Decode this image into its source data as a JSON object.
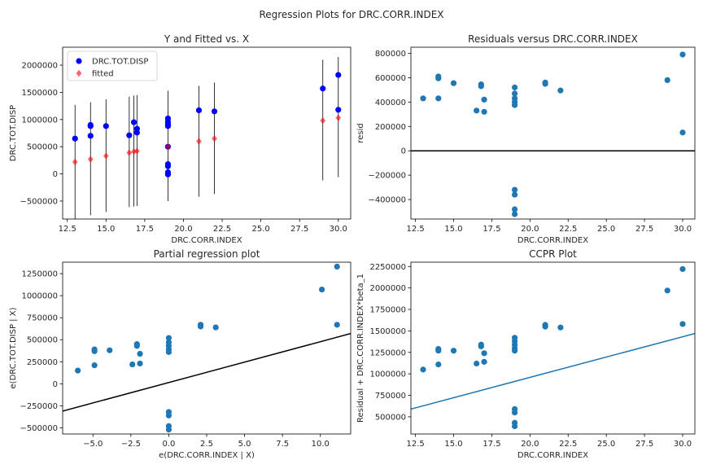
{
  "figure": {
    "suptitle": "Regression Plots for DRC.CORR.INDEX"
  },
  "chart_data": [
    {
      "type": "scatter",
      "title": "Y and Fitted vs. X",
      "xlabel": "DRC.CORR.INDEX",
      "ylabel": "DRC.TOT.DISP",
      "xlim": [
        12.2,
        30.8
      ],
      "ylim": [
        -830000,
        2330000
      ],
      "xticks": [
        12.5,
        15.0,
        17.5,
        20.0,
        22.5,
        25.0,
        27.5,
        30.0
      ],
      "xtick_labels": [
        "12.5",
        "15.0",
        "17.5",
        "20.0",
        "22.5",
        "25.0",
        "27.5",
        "30.0"
      ],
      "yticks": [
        -500000,
        0,
        500000,
        1000000,
        1500000,
        2000000
      ],
      "ytick_labels": [
        "−500000",
        "0",
        "500000",
        "1000000",
        "1500000",
        "2000000"
      ],
      "legend": {
        "placement": "upper-left",
        "entries": [
          "DRC.TOT.DISP",
          "fitted"
        ]
      },
      "series": [
        {
          "name": "DRC.TOT.DISP",
          "color": "#0000ff",
          "marker": "circle",
          "points": [
            [
              13,
              650000
            ],
            [
              14,
              880000
            ],
            [
              14,
              900000
            ],
            [
              14,
              700000
            ],
            [
              15,
              880000
            ],
            [
              16.5,
              710000
            ],
            [
              16.8,
              950000
            ],
            [
              17,
              830000
            ],
            [
              17,
              760000
            ],
            [
              19,
              1020000
            ],
            [
              19,
              960000
            ],
            [
              19,
              920000
            ],
            [
              19,
              880000
            ],
            [
              19,
              500000
            ],
            [
              19,
              180000
            ],
            [
              19,
              140000
            ],
            [
              19,
              30000
            ],
            [
              19,
              -10000
            ],
            [
              21,
              1170000
            ],
            [
              22,
              1150000
            ],
            [
              29,
              1570000
            ],
            [
              30,
              1820000
            ],
            [
              30,
              1180000
            ]
          ]
        },
        {
          "name": "fitted",
          "color": "#ff0000",
          "marker": "diamond",
          "points": [
            [
              13,
              220000
            ],
            [
              14,
              270000
            ],
            [
              15,
              330000
            ],
            [
              16.5,
              390000
            ],
            [
              16.8,
              410000
            ],
            [
              17,
              420000
            ],
            [
              19,
              500000
            ],
            [
              21,
              600000
            ],
            [
              22,
              650000
            ],
            [
              29,
              980000
            ],
            [
              30,
              1030000
            ]
          ]
        }
      ],
      "intervals": [
        [
          13,
          -830000,
          1270000
        ],
        [
          14,
          -760000,
          1320000
        ],
        [
          15,
          -700000,
          1370000
        ],
        [
          16.5,
          -610000,
          1420000
        ],
        [
          16.8,
          -600000,
          1440000
        ],
        [
          17,
          -590000,
          1450000
        ],
        [
          19,
          -500000,
          1530000
        ],
        [
          21,
          -420000,
          1620000
        ],
        [
          22,
          -370000,
          1680000
        ],
        [
          29,
          -120000,
          2100000
        ],
        [
          30,
          -60000,
          2150000
        ]
      ]
    },
    {
      "type": "scatter",
      "title": "Residuals versus DRC.CORR.INDEX",
      "xlabel": "DRC.CORR.INDEX",
      "ylabel": "resid",
      "xlim": [
        12.2,
        30.8
      ],
      "ylim": [
        -560000,
        850000
      ],
      "xticks": [
        12.5,
        15.0,
        17.5,
        20.0,
        22.5,
        25.0,
        27.5,
        30.0
      ],
      "xtick_labels": [
        "12.5",
        "15.0",
        "17.5",
        "20.0",
        "22.5",
        "25.0",
        "27.5",
        "30.0"
      ],
      "yticks": [
        -400000,
        -200000,
        0,
        200000,
        400000,
        600000,
        800000
      ],
      "ytick_labels": [
        "−400000",
        "−200000",
        "0",
        "200000",
        "400000",
        "600000",
        "800000"
      ],
      "hline": 0,
      "series": [
        {
          "color": "#1f77b4",
          "marker": "circle",
          "points": [
            [
              13,
              430000
            ],
            [
              14,
              610000
            ],
            [
              14,
              595000
            ],
            [
              14,
              430000
            ],
            [
              15,
              555000
            ],
            [
              16.5,
              330000
            ],
            [
              16.8,
              545000
            ],
            [
              16.8,
              530000
            ],
            [
              17,
              420000
            ],
            [
              17,
              320000
            ],
            [
              19,
              520000
            ],
            [
              19,
              470000
            ],
            [
              19,
              430000
            ],
            [
              19,
              400000
            ],
            [
              19,
              375000
            ],
            [
              19,
              -320000
            ],
            [
              19,
              -360000
            ],
            [
              19,
              -480000
            ],
            [
              19,
              -520000
            ],
            [
              21,
              560000
            ],
            [
              21,
              550000
            ],
            [
              22,
              495000
            ],
            [
              29,
              580000
            ],
            [
              30,
              790000
            ],
            [
              30,
              150000
            ]
          ]
        }
      ]
    },
    {
      "type": "scatter",
      "title": "Partial regression plot",
      "xlabel": "e(DRC.CORR.INDEX | X)",
      "ylabel": "e(DRC.TOT.DISP | X)",
      "xlim": [
        -7,
        12
      ],
      "ylim": [
        -570000,
        1380000
      ],
      "xticks": [
        -5.0,
        -2.5,
        0.0,
        2.5,
        5.0,
        7.5,
        10.0
      ],
      "xtick_labels": [
        "−5.0",
        "−2.5",
        "0.0",
        "2.5",
        "5.0",
        "7.5",
        "10.0"
      ],
      "yticks": [
        -500000,
        -250000,
        0,
        250000,
        500000,
        750000,
        1000000,
        1250000
      ],
      "ytick_labels": [
        "−500000",
        "−250000",
        "0",
        "250000",
        "500000",
        "750000",
        "1000000",
        "1250000"
      ],
      "fit_line": [
        [
          -7,
          -310000
        ],
        [
          12,
          570000
        ]
      ],
      "series": [
        {
          "color": "#1f77b4",
          "marker": "circle",
          "points": [
            [
              -6,
              150000
            ],
            [
              -4.9,
              390000
            ],
            [
              -4.9,
              370000
            ],
            [
              -4.9,
              210000
            ],
            [
              -3.9,
              380000
            ],
            [
              -2.4,
              220000
            ],
            [
              -2.1,
              450000
            ],
            [
              -2.1,
              430000
            ],
            [
              -1.9,
              340000
            ],
            [
              -1.9,
              230000
            ],
            [
              0,
              520000
            ],
            [
              0,
              470000
            ],
            [
              0,
              430000
            ],
            [
              0,
              390000
            ],
            [
              0,
              360000
            ],
            [
              0,
              -320000
            ],
            [
              0,
              -360000
            ],
            [
              0,
              -480000
            ],
            [
              0,
              -520000
            ],
            [
              2.1,
              670000
            ],
            [
              2.1,
              650000
            ],
            [
              3.1,
              640000
            ],
            [
              10.1,
              1070000
            ],
            [
              11.1,
              1330000
            ],
            [
              11.1,
              670000
            ]
          ]
        }
      ]
    },
    {
      "type": "scatter",
      "title": "CCPR Plot",
      "xlabel": "DRC.CORR.INDEX",
      "ylabel": "Residual + DRC.CORR.INDEX*beta_1",
      "xlim": [
        12.2,
        30.8
      ],
      "ylim": [
        300000,
        2300000
      ],
      "xticks": [
        12.5,
        15.0,
        17.5,
        20.0,
        22.5,
        25.0,
        27.5,
        30.0
      ],
      "xtick_labels": [
        "12.5",
        "15.0",
        "17.5",
        "20.0",
        "22.5",
        "25.0",
        "27.5",
        "30.0"
      ],
      "yticks": [
        500000,
        750000,
        1000000,
        1250000,
        1500000,
        1750000,
        2000000,
        2250000
      ],
      "ytick_labels": [
        "500000",
        "750000",
        "1000000",
        "1250000",
        "1500000",
        "1750000",
        "2000000",
        "2250000"
      ],
      "fit_line": [
        [
          12.2,
          590000
        ],
        [
          30.8,
          1470000
        ]
      ],
      "series": [
        {
          "color": "#1f77b4",
          "marker": "circle",
          "points": [
            [
              13,
              1050000
            ],
            [
              14,
              1290000
            ],
            [
              14,
              1270000
            ],
            [
              14,
              1110000
            ],
            [
              15,
              1270000
            ],
            [
              16.5,
              1120000
            ],
            [
              16.8,
              1340000
            ],
            [
              16.8,
              1320000
            ],
            [
              17,
              1240000
            ],
            [
              17,
              1140000
            ],
            [
              19,
              1420000
            ],
            [
              19,
              1380000
            ],
            [
              19,
              1340000
            ],
            [
              19,
              1300000
            ],
            [
              19,
              1270000
            ],
            [
              19,
              590000
            ],
            [
              19,
              550000
            ],
            [
              19,
              430000
            ],
            [
              19,
              390000
            ],
            [
              21,
              1570000
            ],
            [
              21,
              1550000
            ],
            [
              22,
              1540000
            ],
            [
              29,
              1970000
            ],
            [
              30,
              2220000
            ],
            [
              30,
              1580000
            ]
          ]
        }
      ]
    }
  ]
}
